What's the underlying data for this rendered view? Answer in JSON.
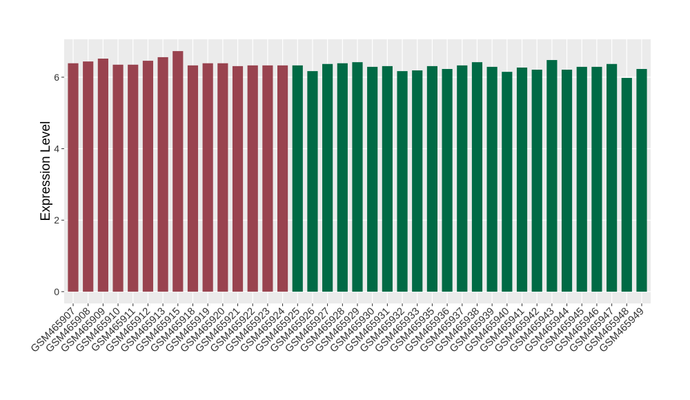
{
  "chart_data": {
    "type": "bar",
    "y_label": "Expression Level",
    "categories": [
      "GSM465907",
      "GSM465908",
      "GSM465909",
      "GSM465910",
      "GSM465911",
      "GSM465912",
      "GSM465913",
      "GSM465915",
      "GSM465918",
      "GSM465919",
      "GSM465920",
      "GSM465921",
      "GSM465922",
      "GSM465923",
      "GSM465924",
      "GSM465925",
      "GSM465926",
      "GSM465927",
      "GSM465928",
      "GSM465929",
      "GSM465930",
      "GSM465931",
      "GSM465932",
      "GSM465933",
      "GSM465935",
      "GSM465936",
      "GSM465937",
      "GSM465938",
      "GSM465939",
      "GSM465940",
      "GSM465941",
      "GSM465942",
      "GSM465943",
      "GSM465944",
      "GSM465945",
      "GSM465946",
      "GSM465947",
      "GSM465948",
      "GSM465949"
    ],
    "values": [
      6.39,
      6.44,
      6.52,
      6.35,
      6.35,
      6.46,
      6.56,
      6.73,
      6.33,
      6.39,
      6.39,
      6.31,
      6.33,
      6.33,
      6.33,
      6.33,
      6.17,
      6.37,
      6.39,
      6.42,
      6.29,
      6.31,
      6.17,
      6.19,
      6.31,
      6.23,
      6.33,
      6.42,
      6.29,
      6.15,
      6.27,
      6.21,
      6.48,
      6.21,
      6.29,
      6.29,
      6.37,
      5.98,
      6.23
    ],
    "colors": [
      "#99434f",
      "#99434f",
      "#99434f",
      "#99434f",
      "#99434f",
      "#99434f",
      "#99434f",
      "#99434f",
      "#99434f",
      "#99434f",
      "#99434f",
      "#99434f",
      "#99434f",
      "#99434f",
      "#99434f",
      "#006a45",
      "#006a45",
      "#006a45",
      "#006a45",
      "#006a45",
      "#006a45",
      "#006a45",
      "#006a45",
      "#006a45",
      "#006a45",
      "#006a45",
      "#006a45",
      "#006a45",
      "#006a45",
      "#006a45",
      "#006a45",
      "#006a45",
      "#006a45",
      "#006a45",
      "#006a45",
      "#006a45",
      "#006a45",
      "#006a45",
      "#006a45"
    ],
    "ylim": [
      -0.33,
      7.06
    ],
    "yticks": [
      0,
      2,
      4,
      6
    ],
    "grid": true
  }
}
